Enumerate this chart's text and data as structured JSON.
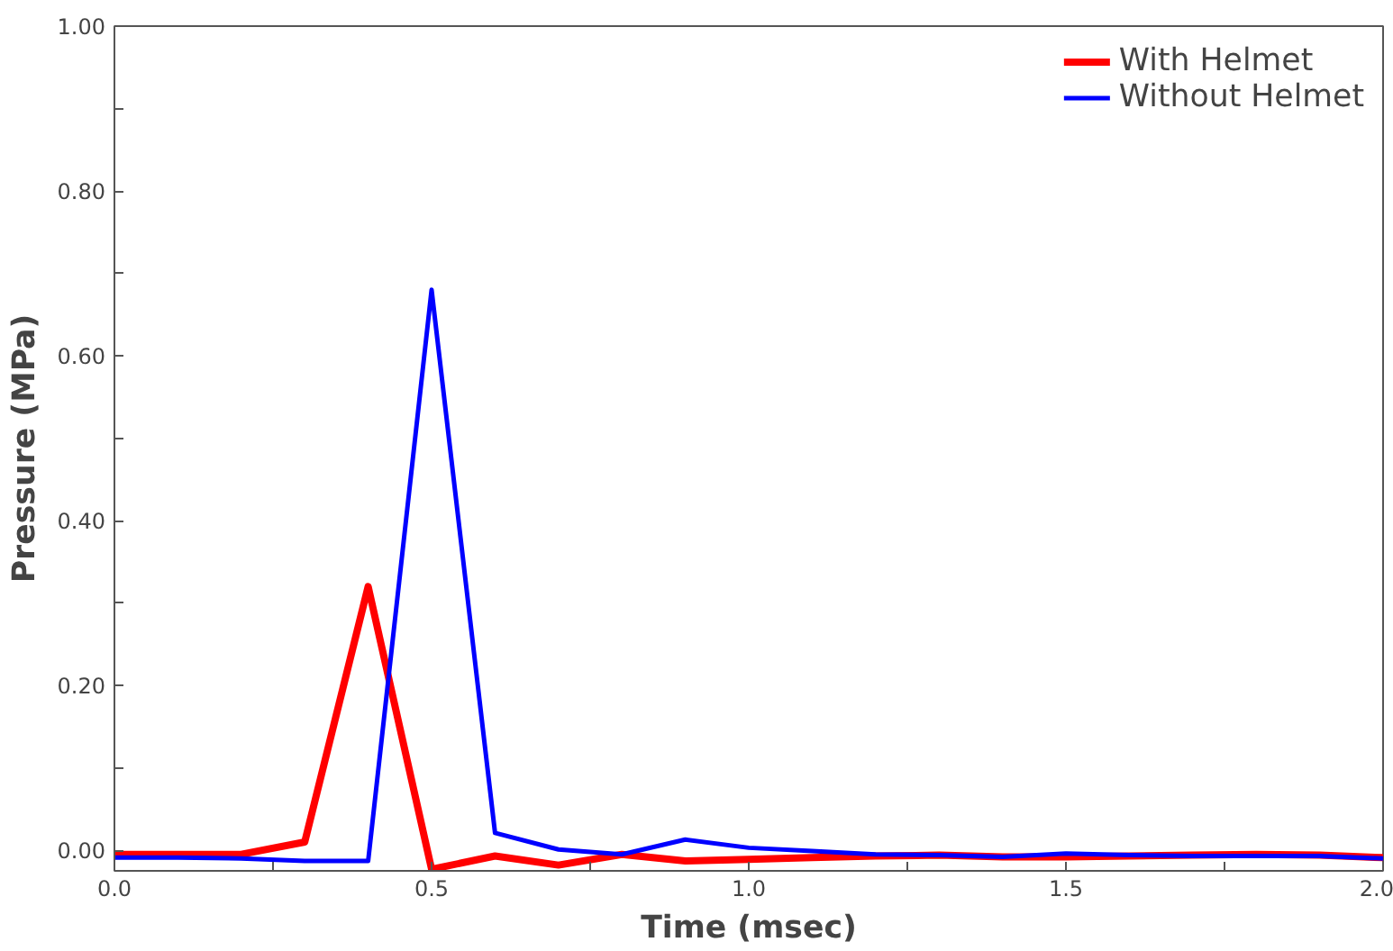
{
  "chart_data": {
    "type": "line",
    "xlabel": "Time (msec)",
    "ylabel": "Pressure (MPa)",
    "x": [
      0,
      0.1,
      0.2,
      0.3,
      0.4,
      0.5,
      0.6,
      0.7,
      0.8,
      0.9,
      1.0,
      1.1,
      1.2,
      1.3,
      1.4,
      1.5,
      1.6,
      1.7,
      1.8,
      1.9,
      2.0
    ],
    "series": [
      {
        "name": "With Helmet",
        "color": "#ff0000",
        "values": [
          -0.005,
          -0.005,
          -0.005,
          0.01,
          0.32,
          -0.023,
          -0.007,
          -0.018,
          -0.005,
          -0.013,
          -0.011,
          -0.009,
          -0.007,
          -0.006,
          -0.008,
          -0.008,
          -0.007,
          -0.006,
          -0.005,
          -0.006,
          -0.009
        ]
      },
      {
        "name": "Without Helmet",
        "color": "#0000ff",
        "values": [
          -0.009,
          -0.009,
          -0.01,
          -0.013,
          -0.013,
          0.68,
          0.021,
          0.001,
          -0.005,
          0.013,
          0.003,
          -0.001,
          -0.005,
          -0.006,
          -0.008,
          -0.004,
          -0.006,
          -0.007,
          -0.007,
          -0.007,
          -0.01
        ]
      }
    ],
    "xlim": [
      0,
      2.0
    ],
    "ylim": [
      -0.025,
      1.0
    ],
    "xticks": [
      {
        "value": 0,
        "label": "0.0"
      },
      {
        "value": 0.25,
        "label": null
      },
      {
        "value": 0.5,
        "label": "0.5"
      },
      {
        "value": 0.75,
        "label": null
      },
      {
        "value": 1.0,
        "label": "1.0"
      },
      {
        "value": 1.25,
        "label": null
      },
      {
        "value": 1.5,
        "label": "1.5"
      },
      {
        "value": 1.75,
        "label": null
      },
      {
        "value": 2.0,
        "label": "2.0"
      }
    ],
    "yticks": [
      {
        "value": 0,
        "label": "0.00"
      },
      {
        "value": 0.1,
        "label": null
      },
      {
        "value": 0.2,
        "label": "0.20"
      },
      {
        "value": 0.3,
        "label": null
      },
      {
        "value": 0.4,
        "label": "0.40"
      },
      {
        "value": 0.5,
        "label": null
      },
      {
        "value": 0.6,
        "label": "0.60"
      },
      {
        "value": 0.7,
        "label": null
      },
      {
        "value": 0.8,
        "label": "0.80"
      },
      {
        "value": 0.9,
        "label": null
      },
      {
        "value": 1.0,
        "label": "1.00"
      }
    ],
    "grid": false,
    "legend": "top right",
    "marker": "none",
    "line_style": "solid"
  }
}
